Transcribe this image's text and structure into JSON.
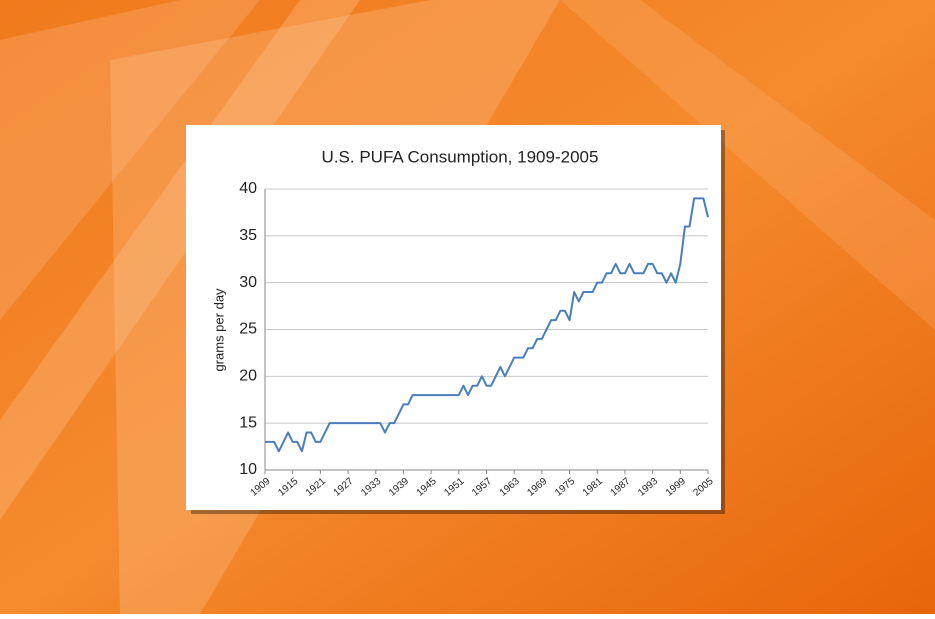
{
  "chart_data": {
    "type": "line",
    "title": "U.S. PUFA Consumption, 1909-2005",
    "y_label": "grams per day",
    "x": [
      1909,
      1910,
      1911,
      1912,
      1913,
      1914,
      1915,
      1916,
      1917,
      1918,
      1919,
      1920,
      1921,
      1922,
      1923,
      1924,
      1925,
      1926,
      1927,
      1928,
      1929,
      1930,
      1931,
      1932,
      1933,
      1934,
      1935,
      1936,
      1937,
      1938,
      1939,
      1940,
      1941,
      1942,
      1943,
      1944,
      1945,
      1946,
      1947,
      1948,
      1949,
      1950,
      1951,
      1952,
      1953,
      1954,
      1955,
      1956,
      1957,
      1958,
      1959,
      1960,
      1961,
      1962,
      1963,
      1964,
      1965,
      1966,
      1967,
      1968,
      1969,
      1970,
      1971,
      1972,
      1973,
      1974,
      1975,
      1976,
      1977,
      1978,
      1979,
      1980,
      1981,
      1982,
      1983,
      1984,
      1985,
      1986,
      1987,
      1988,
      1989,
      1990,
      1991,
      1992,
      1993,
      1994,
      1995,
      1996,
      1997,
      1998,
      1999,
      2000,
      2001,
      2002,
      2003,
      2004,
      2005
    ],
    "values": [
      13,
      13,
      13,
      12,
      13,
      14,
      13,
      13,
      12,
      14,
      14,
      13,
      13,
      14,
      15,
      15,
      15,
      15,
      15,
      15,
      15,
      15,
      15,
      15,
      15,
      15,
      14,
      15,
      15,
      16,
      17,
      17,
      18,
      18,
      18,
      18,
      18,
      18,
      18,
      18,
      18,
      18,
      18,
      19,
      18,
      19,
      19,
      20,
      19,
      19,
      20,
      21,
      20,
      21,
      22,
      22,
      22,
      23,
      23,
      24,
      24,
      25,
      26,
      26,
      27,
      27,
      26,
      29,
      28,
      29,
      29,
      29,
      30,
      30,
      31,
      31,
      32,
      31,
      31,
      32,
      31,
      31,
      31,
      32,
      32,
      31,
      31,
      30,
      31,
      30,
      32,
      36,
      36,
      39,
      39,
      39,
      37
    ],
    "color": "#4a7ebb",
    "xlim": [
      1909,
      2005
    ],
    "xticks": [
      1909,
      1915,
      1921,
      1927,
      1933,
      1939,
      1945,
      1951,
      1957,
      1963,
      1969,
      1975,
      1981,
      1987,
      1993,
      1999,
      2005
    ],
    "ylim": [
      10,
      40
    ],
    "yticks": [
      10,
      15,
      20,
      25,
      30,
      35,
      40
    ],
    "grid": true
  }
}
